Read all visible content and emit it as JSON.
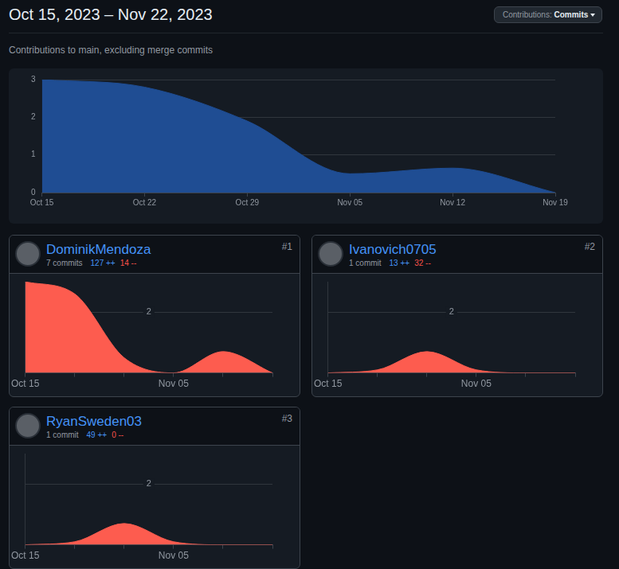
{
  "header": {
    "title": "Oct 15, 2023 – Nov 22, 2023",
    "button": {
      "label": "Contributions:",
      "value": "Commits"
    },
    "subtitle": "Contributions to main, excluding merge commits"
  },
  "chart_data": [
    {
      "type": "area",
      "categories": [
        "Oct 15",
        "Oct 22",
        "Oct 29",
        "Nov 05",
        "Nov 12",
        "Nov 19"
      ],
      "values": [
        3,
        2.8,
        1.9,
        0.5,
        0.65,
        0
      ],
      "color": "#1f4d93",
      "ylim": [
        0,
        3
      ],
      "yticks": [
        0,
        1,
        2,
        3
      ],
      "grid": true
    },
    {
      "type": "area",
      "categories": [
        "Oct 15",
        null,
        null,
        "Nov 05",
        null,
        null
      ],
      "values": [
        3,
        2.6,
        0.5,
        0,
        0.7,
        0
      ],
      "color": "#fd5c4f",
      "ylim": [
        0,
        3
      ],
      "yticks": [
        2
      ],
      "grid": true
    },
    {
      "type": "area",
      "categories": [
        "Oct 15",
        null,
        null,
        "Nov 05",
        null,
        null
      ],
      "values": [
        0,
        0.1,
        0.7,
        0.1,
        0,
        0
      ],
      "color": "#fd5c4f",
      "ylim": [
        0,
        3
      ],
      "yticks": [
        2
      ],
      "grid": true
    },
    {
      "type": "area",
      "categories": [
        "Oct 15",
        null,
        null,
        "Nov 05",
        null,
        null
      ],
      "values": [
        0,
        0.1,
        0.7,
        0.1,
        0,
        0
      ],
      "color": "#fd5c4f",
      "ylim": [
        0,
        3
      ],
      "yticks": [
        2
      ],
      "grid": true
    }
  ],
  "contributors": [
    {
      "name": "DominikMendoza",
      "commits": "7 commits",
      "additions": "127 ++",
      "deletions": "14 --",
      "rank": "#1"
    },
    {
      "name": "Ivanovich0705",
      "commits": "1 commit",
      "additions": "13 ++",
      "deletions": "32 --",
      "rank": "#2"
    },
    {
      "name": "RyanSweden03",
      "commits": "1 commit",
      "additions": "49 ++",
      "deletions": "0 --",
      "rank": "#3"
    }
  ]
}
